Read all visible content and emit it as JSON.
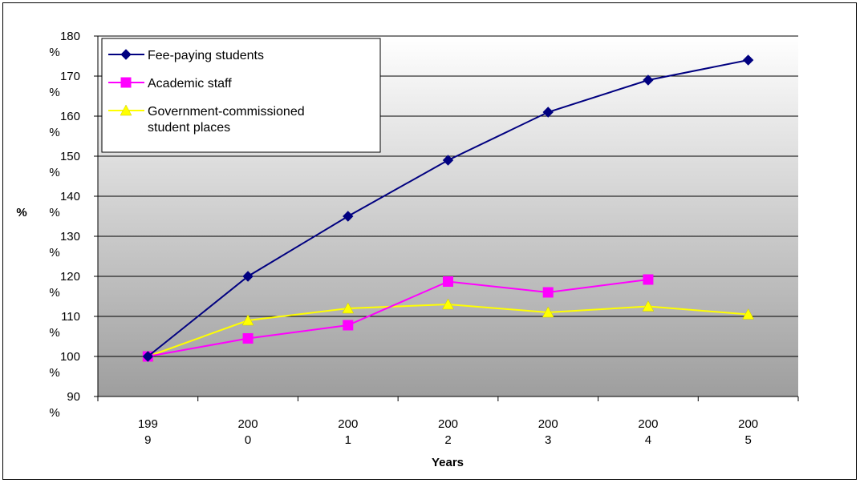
{
  "chart_data": {
    "type": "line",
    "ylabel": "%",
    "xlabel": "Years",
    "x": [
      "1999",
      "2000",
      "2001",
      "2002",
      "2003",
      "2004",
      "2005"
    ],
    "x_tick_lines": [
      [
        "199",
        "9"
      ],
      [
        "200",
        "0"
      ],
      [
        "200",
        "1"
      ],
      [
        "200",
        "2"
      ],
      [
        "200",
        "3"
      ],
      [
        "200",
        "4"
      ],
      [
        "200",
        "5"
      ]
    ],
    "ylim": [
      90,
      180
    ],
    "yticks": [
      90,
      100,
      110,
      120,
      130,
      140,
      150,
      160,
      170,
      180
    ],
    "ytick_suffix": "%",
    "grid": true,
    "legend_position": "top-left",
    "series": [
      {
        "name": "Fee-paying students",
        "color": "#000080",
        "marker": "diamond",
        "values": [
          100,
          120,
          135,
          149,
          161,
          169,
          174
        ]
      },
      {
        "name": "Academic staff",
        "color": "#ff00ff",
        "marker": "square",
        "values": [
          100,
          104.5,
          107.8,
          118.7,
          116,
          119.2,
          null
        ]
      },
      {
        "name": "Government-commissioned student places",
        "legend_lines": [
          "Government-commissioned",
          "student places"
        ],
        "color": "#ffff00",
        "marker": "triangle",
        "values": [
          100,
          109,
          112,
          113,
          111,
          112.5,
          110.5
        ]
      }
    ]
  }
}
